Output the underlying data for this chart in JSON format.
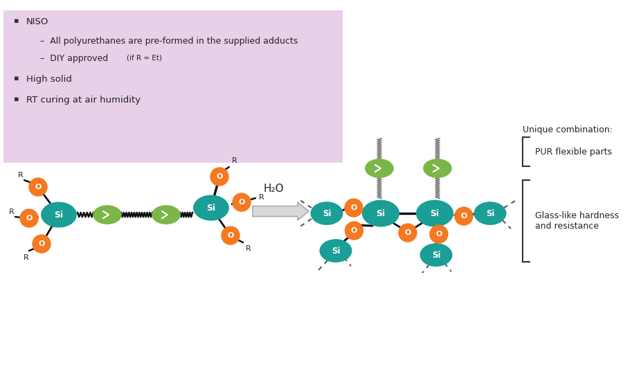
{
  "background_color": "#ffffff",
  "text_box_color": "#e8d0e8",
  "si_color": "#1a9e96",
  "o_color": "#f47920",
  "green_color": "#7ab648",
  "arrow_color": "#cccccc",
  "bond_color": "#1a1a1a",
  "unique_combination_text": "Unique combination:",
  "pur_text": "PUR flexible parts",
  "glass_text": "Glass-like hardness\nand resistance",
  "h2o_text": "H₂O"
}
